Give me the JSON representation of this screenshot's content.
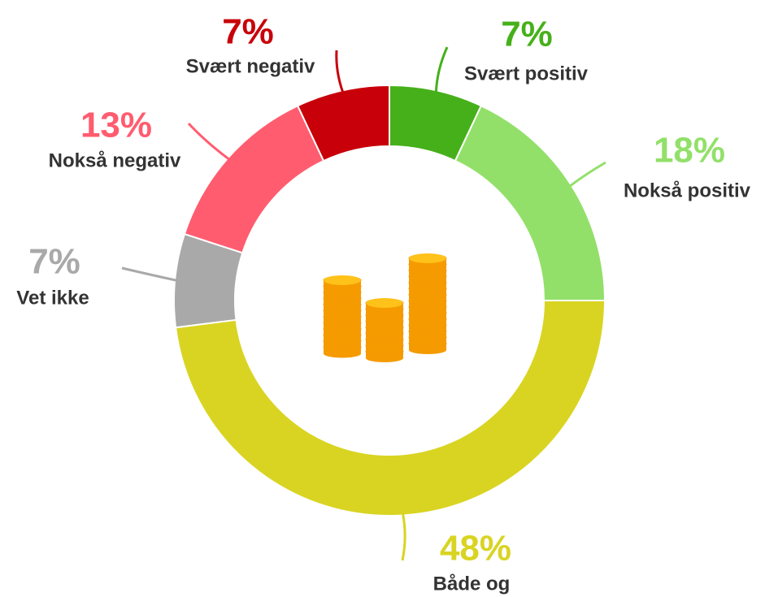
{
  "chart_data": {
    "type": "donut",
    "categories": [
      "Svært positiv",
      "Nokså positiv",
      "Både og",
      "Vet ikke",
      "Nokså negativ",
      "Svært negativ"
    ],
    "values": [
      7,
      18,
      48,
      7,
      13,
      7
    ],
    "value_labels": [
      "7%",
      "18%",
      "48%",
      "7%",
      "13%",
      "7%"
    ],
    "colors": [
      "#46b01a",
      "#92e06a",
      "#d9d422",
      "#a9a9a9",
      "#ff5c6f",
      "#c8000a"
    ]
  }
}
